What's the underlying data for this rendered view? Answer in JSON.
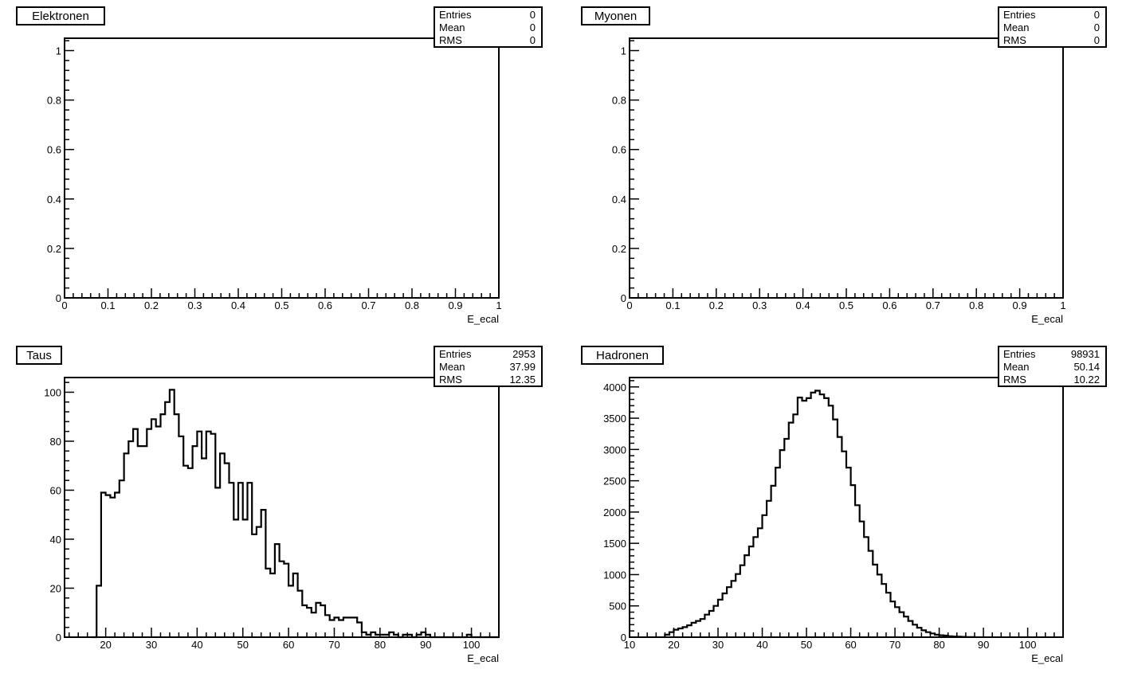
{
  "chart_data": [
    {
      "type": "histogram",
      "title": "Elektronen",
      "xlabel": "E_ecal",
      "xlim": [
        0,
        1
      ],
      "ylim": [
        0,
        1.05
      ],
      "xticks": [
        0,
        0.1,
        0.2,
        0.3,
        0.4,
        0.5,
        0.6,
        0.7,
        0.8,
        0.9,
        1
      ],
      "xtick_labels": [
        "0",
        "0.1",
        "0.2",
        "0.3",
        "0.4",
        "0.5",
        "0.6",
        "0.7",
        "0.8",
        "0.9",
        "1"
      ],
      "yticks": [
        0,
        0.2,
        0.4,
        0.6,
        0.8,
        1
      ],
      "ytick_labels": [
        "0",
        "0.2",
        "0.4",
        "0.6",
        "0.8",
        "1"
      ],
      "stats": [
        {
          "label": "Entries",
          "value": "0"
        },
        {
          "label": "Mean",
          "value": "0"
        },
        {
          "label": "RMS",
          "value": "0"
        }
      ],
      "bins": []
    },
    {
      "type": "histogram",
      "title": "Myonen",
      "xlabel": "E_ecal",
      "xlim": [
        0,
        1
      ],
      "ylim": [
        0,
        1.05
      ],
      "xticks": [
        0,
        0.1,
        0.2,
        0.3,
        0.4,
        0.5,
        0.6,
        0.7,
        0.8,
        0.9,
        1
      ],
      "xtick_labels": [
        "0",
        "0.1",
        "0.2",
        "0.3",
        "0.4",
        "0.5",
        "0.6",
        "0.7",
        "0.8",
        "0.9",
        "1"
      ],
      "yticks": [
        0,
        0.2,
        0.4,
        0.6,
        0.8,
        1
      ],
      "ytick_labels": [
        "0",
        "0.2",
        "0.4",
        "0.6",
        "0.8",
        "1"
      ],
      "stats": [
        {
          "label": "Entries",
          "value": "0"
        },
        {
          "label": "Mean",
          "value": "0"
        },
        {
          "label": "RMS",
          "value": "0"
        }
      ],
      "bins": []
    },
    {
      "type": "histogram",
      "title": "Taus",
      "xlabel": "E_ecal",
      "xlim": [
        11,
        106
      ],
      "ylim": [
        0,
        106
      ],
      "xticks": [
        20,
        30,
        40,
        50,
        60,
        70,
        80,
        90,
        100
      ],
      "xtick_labels": [
        "20",
        "30",
        "40",
        "50",
        "60",
        "70",
        "80",
        "90",
        "100"
      ],
      "yticks": [
        0,
        20,
        40,
        60,
        80,
        100
      ],
      "ytick_labels": [
        "0",
        "20",
        "40",
        "60",
        "80",
        "100"
      ],
      "stats": [
        {
          "label": "Entries",
          "value": "2953"
        },
        {
          "label": "Mean",
          "value": "37.99"
        },
        {
          "label": "RMS",
          "value": "12.35"
        }
      ],
      "bin_start": 17,
      "bin_width": 1,
      "values": [
        0,
        21,
        59,
        58,
        57,
        59,
        64,
        75,
        80,
        85,
        78,
        78,
        85,
        89,
        86,
        91,
        96,
        101,
        91,
        82,
        70,
        69,
        78,
        84,
        73,
        84,
        83,
        61,
        75,
        71,
        63,
        48,
        63,
        48,
        63,
        42,
        45,
        52,
        28,
        26,
        38,
        31,
        30,
        21,
        26,
        19,
        13,
        12,
        10,
        14,
        13,
        9,
        7,
        8,
        7,
        8,
        8,
        8,
        6,
        2,
        1,
        2,
        1,
        1,
        1,
        2,
        1,
        0,
        1,
        1,
        0,
        1,
        2,
        1,
        0,
        0,
        0,
        0,
        0,
        0,
        0,
        0,
        1,
        0,
        0,
        0,
        0,
        0,
        0
      ]
    },
    {
      "type": "histogram",
      "title": "Hadronen",
      "xlabel": "E_ecal",
      "xlim": [
        10,
        108
      ],
      "ylim": [
        0,
        4150
      ],
      "xticks": [
        10,
        20,
        30,
        40,
        50,
        60,
        70,
        80,
        90,
        100
      ],
      "xtick_labels": [
        "10",
        "20",
        "30",
        "40",
        "50",
        "60",
        "70",
        "80",
        "90",
        "100"
      ],
      "yticks": [
        0,
        500,
        1000,
        1500,
        2000,
        2500,
        3000,
        3500,
        4000
      ],
      "ytick_labels": [
        "0",
        "500",
        "1000",
        "1500",
        "2000",
        "2500",
        "3000",
        "3500",
        "4000"
      ],
      "stats": [
        {
          "label": "Entries",
          "value": "98931"
        },
        {
          "label": "Mean",
          "value": "50.14"
        },
        {
          "label": "RMS",
          "value": "10.22"
        }
      ],
      "bin_start": 18,
      "bin_width": 1,
      "values": [
        40,
        80,
        120,
        140,
        160,
        190,
        230,
        260,
        290,
        360,
        420,
        500,
        600,
        700,
        800,
        900,
        1010,
        1150,
        1310,
        1450,
        1600,
        1740,
        1950,
        2180,
        2420,
        2710,
        2990,
        3170,
        3430,
        3560,
        3830,
        3780,
        3820,
        3910,
        3940,
        3880,
        3820,
        3700,
        3480,
        3200,
        2970,
        2710,
        2430,
        2110,
        1850,
        1600,
        1380,
        1160,
        1000,
        850,
        710,
        570,
        480,
        400,
        330,
        260,
        200,
        150,
        110,
        80,
        60,
        40,
        30,
        25,
        15,
        10,
        8,
        5,
        3,
        2
      ]
    }
  ]
}
